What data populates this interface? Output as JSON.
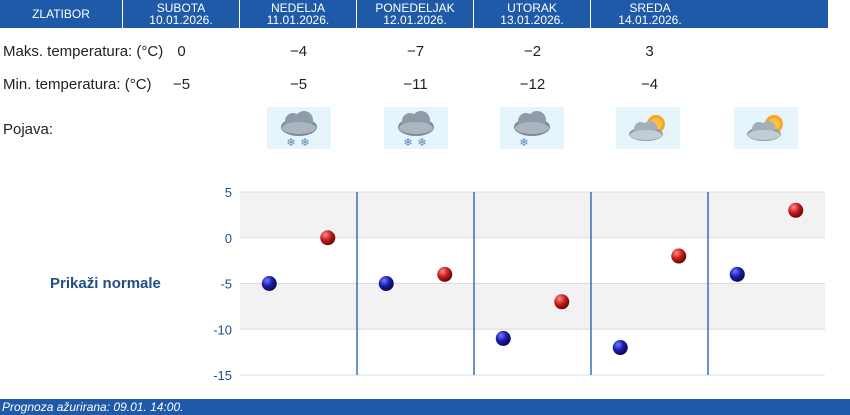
{
  "location": "ZLATIBOR",
  "days": [
    {
      "name": "SUBOTA",
      "date": "10.01.2026.",
      "max": "0",
      "min": "−5",
      "icon": "snow-cloud-icon"
    },
    {
      "name": "NEDELJA",
      "date": "11.01.2026.",
      "max": "−4",
      "min": "−5",
      "icon": "snow-cloud-icon"
    },
    {
      "name": "PONEDELJAK",
      "date": "12.01.2026.",
      "max": "−7",
      "min": "−11",
      "icon": "light-snow-cloud-icon"
    },
    {
      "name": "UTORAK",
      "date": "13.01.2026.",
      "max": "−2",
      "min": "−12",
      "icon": "partly-cloudy-icon"
    },
    {
      "name": "SREDA",
      "date": "14.01.2026.",
      "max": "3",
      "min": "−4",
      "icon": "partly-cloudy-icon"
    }
  ],
  "labels": {
    "max_temp": "Maks. temperatura: (°C)",
    "min_temp": "Min. temperatura: (°C)",
    "phenomenon": "Pojava:",
    "show_normals": "Prikaži normale"
  },
  "footer": "Prognoza ažurirana:  09.01. 14:00.",
  "colors": {
    "header_bg": "#1f5aa8",
    "min_point": "#1a1aa8",
    "max_point": "#c41a1a"
  },
  "chart_data": {
    "type": "scatter",
    "categories": [
      "10.01.2026.",
      "11.01.2026.",
      "12.01.2026.",
      "13.01.2026.",
      "14.01.2026."
    ],
    "series": [
      {
        "values": [
          -5,
          -5,
          -11,
          -12,
          -4
        ]
      },
      {
        "values": [
          0,
          -4,
          -7,
          -2,
          3
        ]
      }
    ],
    "ylim": [
      -15,
      5
    ],
    "yticks": [
      "5",
      "0",
      "-5",
      "-10",
      "-15"
    ],
    "grid": true
  }
}
